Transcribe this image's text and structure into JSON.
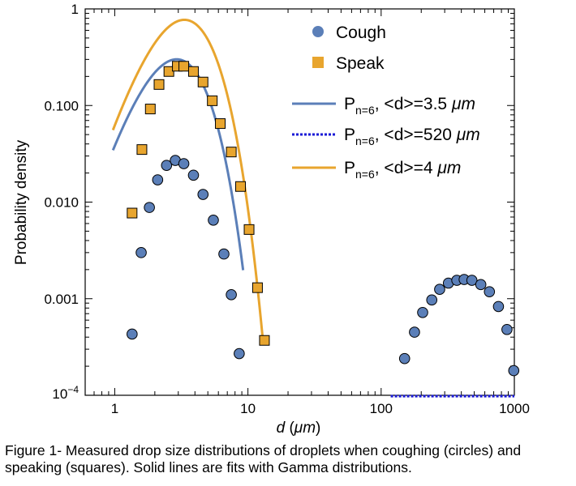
{
  "caption": "Figure 1- Measured drop size distributions of droplets when coughing (circles) and speaking (squares). Solid lines are fits with Gamma distributions.",
  "chart_data": {
    "type": "scatter",
    "xscale": "log",
    "yscale": "log",
    "xlim": [
      0.6,
      1000
    ],
    "ylim": [
      0.0001,
      1
    ],
    "xlabel": "d (μm)",
    "ylabel": "Probability density",
    "xticks": [
      {
        "value": 1,
        "label": "1"
      },
      {
        "value": 10,
        "label": "10"
      },
      {
        "value": 100,
        "label": "100"
      },
      {
        "value": 1000,
        "label": "1000"
      }
    ],
    "yticks": [
      {
        "value": 1,
        "label": "1"
      },
      {
        "value": 0.1,
        "label": "0.100"
      },
      {
        "value": 0.01,
        "label": "0.010"
      },
      {
        "value": 0.001,
        "label": "0.001"
      },
      {
        "value": 0.0001,
        "label": "10^-4"
      }
    ],
    "colors": {
      "cough": "#5b7fb8",
      "speak": "#e8a52e",
      "fit_cough": "#5b7fb8",
      "fit_cough_large": "#1a1ad6",
      "fit_speak": "#e8a52e"
    },
    "series": [
      {
        "name": "Cough",
        "marker": "circle",
        "points": [
          [
            1.35,
            0.00043
          ],
          [
            1.58,
            0.003
          ],
          [
            1.82,
            0.0088
          ],
          [
            2.1,
            0.017
          ],
          [
            2.45,
            0.024
          ],
          [
            2.85,
            0.027
          ],
          [
            3.3,
            0.025
          ],
          [
            3.9,
            0.019
          ],
          [
            4.6,
            0.012
          ],
          [
            5.5,
            0.0065
          ],
          [
            6.6,
            0.0029
          ],
          [
            7.5,
            0.0011
          ],
          [
            8.6,
            0.00027
          ],
          [
            150,
            0.00024
          ],
          [
            178,
            0.00045
          ],
          [
            205,
            0.00072
          ],
          [
            240,
            0.00097
          ],
          [
            275,
            0.00125
          ],
          [
            320,
            0.00145
          ],
          [
            370,
            0.00155
          ],
          [
            420,
            0.00158
          ],
          [
            480,
            0.00155
          ],
          [
            560,
            0.0014
          ],
          [
            650,
            0.00118
          ],
          [
            760,
            0.00083
          ],
          [
            880,
            0.00048
          ],
          [
            990,
            0.00018
          ]
        ]
      },
      {
        "name": "Speak",
        "marker": "square",
        "points": [
          [
            1.35,
            0.0077
          ],
          [
            1.6,
            0.035
          ],
          [
            1.85,
            0.092
          ],
          [
            2.15,
            0.165
          ],
          [
            2.55,
            0.225
          ],
          [
            2.95,
            0.255
          ],
          [
            3.3,
            0.255
          ],
          [
            3.9,
            0.225
          ],
          [
            4.6,
            0.175
          ],
          [
            5.4,
            0.112
          ],
          [
            6.2,
            0.065
          ],
          [
            7.5,
            0.033
          ],
          [
            8.8,
            0.0145
          ],
          [
            10.2,
            0.0052
          ],
          [
            11.8,
            0.0013
          ],
          [
            13.3,
            0.00037
          ]
        ]
      }
    ],
    "fits": [
      {
        "label_main": "P",
        "label_sub": "n=6",
        "label_rest": ", <d>=3.5 ",
        "label_unit": "μm",
        "mean": 3.5,
        "n": 6,
        "scale": 1.0,
        "xrange": [
          0.97,
          9.2
        ],
        "style": "solid",
        "color_key": "fit_cough"
      },
      {
        "label_main": "P",
        "label_sub": "n=6",
        "label_rest": ", <d>=520 ",
        "label_unit": "μm",
        "mean": 520,
        "n": 6,
        "scale": 0.0025,
        "xrange": [
          118,
          1000
        ],
        "style": "dashed",
        "color_key": "fit_cough_large"
      },
      {
        "label_main": "P",
        "label_sub": "n=6",
        "label_rest": ", <d>=4 ",
        "label_unit": "μm",
        "mean": 4,
        "n": 6,
        "scale": 2.93,
        "xrange": [
          0.97,
          13.0
        ],
        "style": "solid",
        "color_key": "fit_speak"
      }
    ]
  }
}
